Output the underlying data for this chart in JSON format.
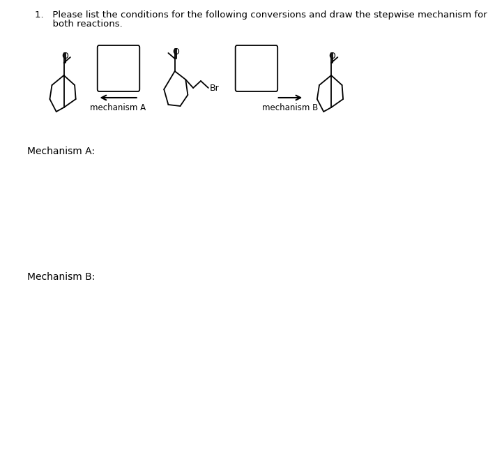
{
  "title_line1": "1.   Please list the conditions for the following conversions and draw the stepwise mechanism for",
  "title_line2": "      both reactions.",
  "mechanism_a_label": "mechanism A",
  "mechanism_b_label": "mechanism B",
  "mechanism_a_section": "Mechanism A:",
  "mechanism_b_section": "Mechanism B:",
  "br_label": "Br",
  "bg_color": "#ffffff",
  "text_color": "#000000",
  "line_color": "#000000",
  "font_size_title": 9.5,
  "font_size_label": 8.5,
  "font_size_section": 10
}
